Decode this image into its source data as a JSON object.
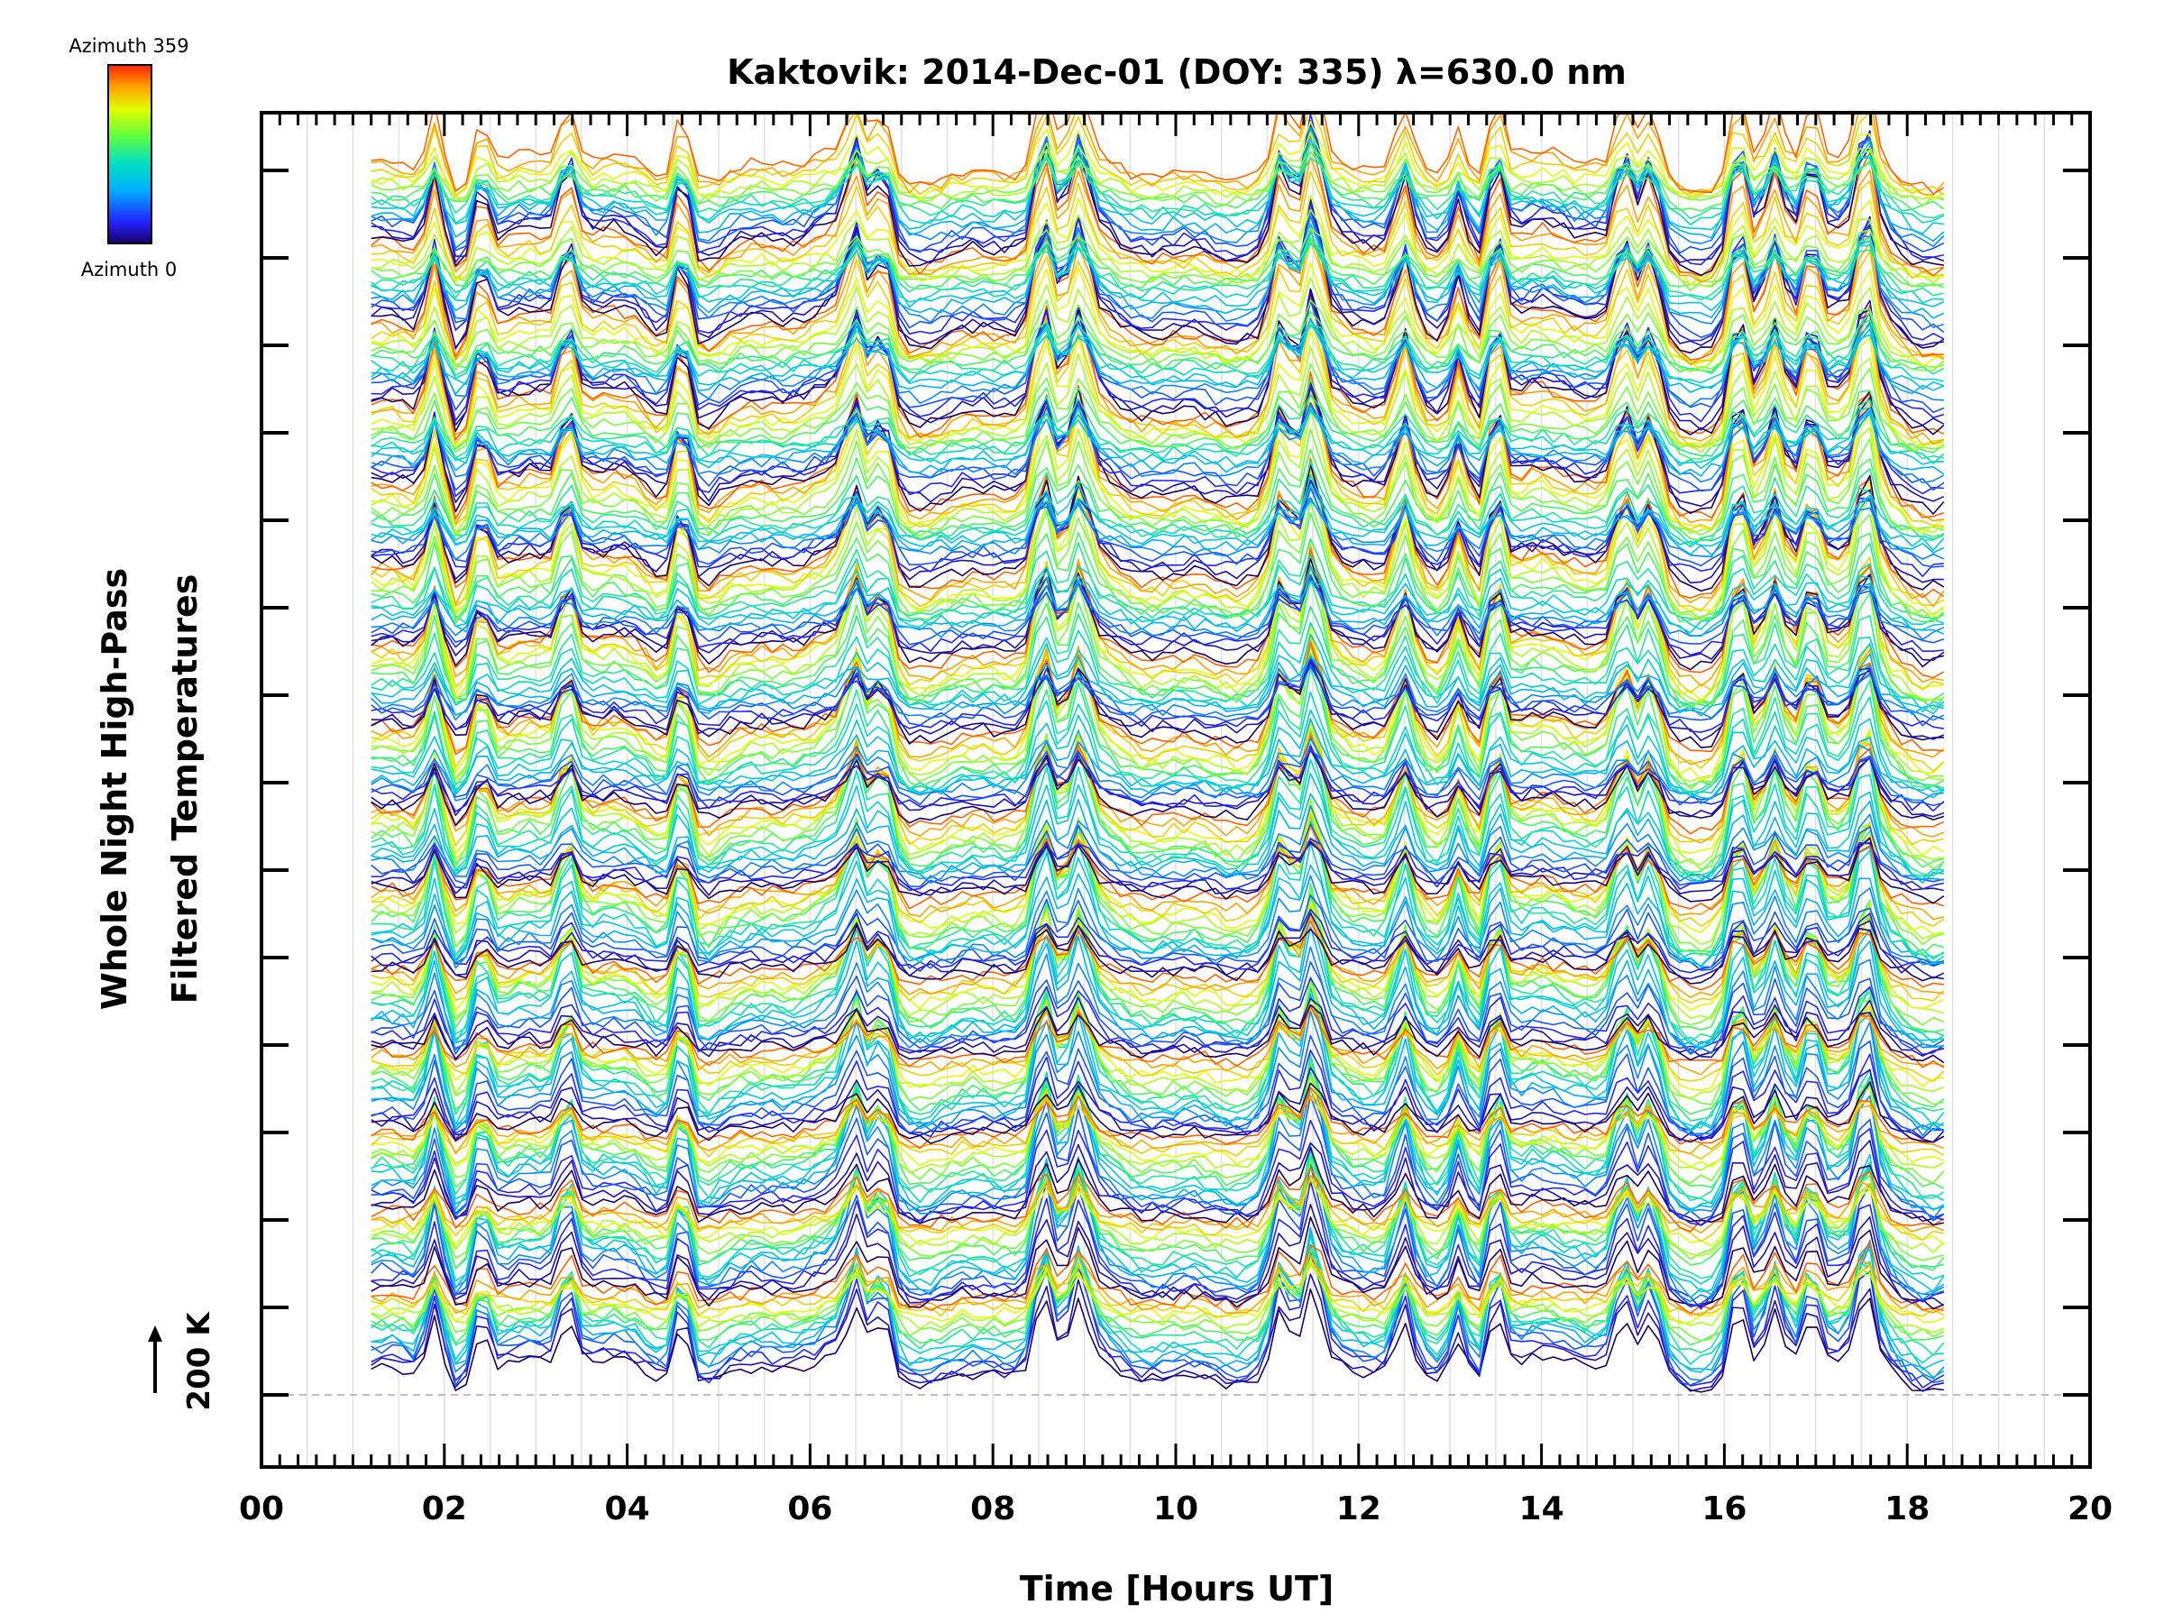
{
  "chart_data": {
    "type": "line",
    "title": "Kaktovik: 2014-Dec-01 (DOY: 335) λ=630.0 nm",
    "xlabel": "Time [Hours UT]",
    "ylabel_line1": "Whole Night High-Pass",
    "ylabel_line2": "Filtered Temperatures",
    "xlim": [
      0,
      20
    ],
    "x_tick_labels": [
      "00",
      "02",
      "04",
      "06",
      "08",
      "10",
      "12",
      "14",
      "16",
      "18",
      "20"
    ],
    "x_tick_values": [
      0,
      2,
      4,
      6,
      8,
      10,
      12,
      14,
      16,
      18,
      20
    ],
    "data_x_range": [
      1.2,
      18.4
    ],
    "n_azimuth_traces": 240,
    "n_stacked_groups": 15,
    "grid": true,
    "scale_marker": {
      "label": "200 K",
      "value_kelvin": 200
    },
    "colorbar": {
      "top_label": "Azimuth 359",
      "bottom_label": "Azimuth 0",
      "min": 0,
      "max": 359,
      "colormap": "rainbow"
    },
    "event_times_hours": [
      1.9,
      2.4,
      3.35,
      4.6,
      6.5,
      6.8,
      8.55,
      8.95,
      11.15,
      11.5,
      12.5,
      13.1,
      13.5,
      14.9,
      15.2,
      16.15,
      16.55,
      16.95,
      17.55
    ]
  }
}
